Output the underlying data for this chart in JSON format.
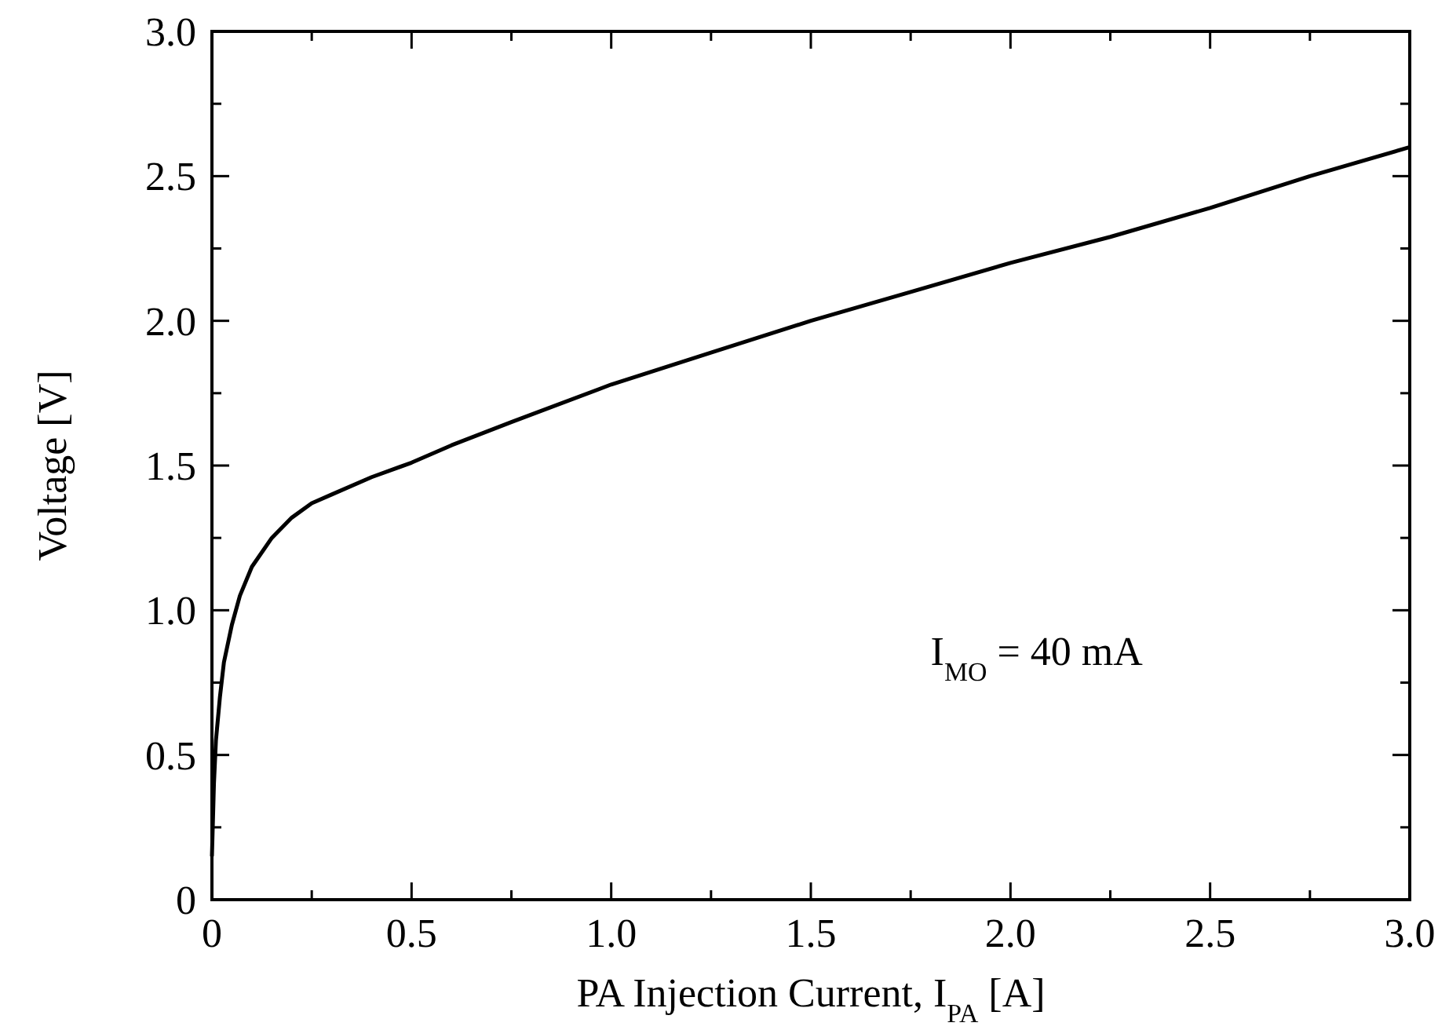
{
  "chart_data": {
    "type": "line",
    "xlabel": "PA Injection Current, I$_{PA}$ [A]",
    "ylabel": "Voltage [V]",
    "annotations": [
      "I$_{MO}$ = 40 mA"
    ],
    "x": [
      0,
      0.005,
      0.01,
      0.02,
      0.03,
      0.05,
      0.07,
      0.1,
      0.15,
      0.2,
      0.25,
      0.3,
      0.4,
      0.5,
      0.6,
      0.75,
      1.0,
      1.25,
      1.5,
      1.75,
      2.0,
      2.25,
      2.5,
      2.75,
      3.0
    ],
    "series": [
      {
        "color": "#000000",
        "values": [
          0.15,
          0.4,
          0.55,
          0.7,
          0.82,
          0.95,
          1.05,
          1.15,
          1.25,
          1.32,
          1.37,
          1.4,
          1.46,
          1.51,
          1.57,
          1.65,
          1.78,
          1.89,
          2.0,
          2.1,
          2.2,
          2.29,
          2.39,
          2.5,
          2.6
        ]
      }
    ],
    "xlim": [
      0,
      3
    ],
    "ylim": [
      0,
      3
    ],
    "xticks": [
      0,
      {
        "value": 0.25,
        "label": null
      },
      0.5,
      {
        "value": 0.75,
        "label": null
      },
      {
        "value": 1,
        "label": "1.0"
      },
      {
        "value": 1.25,
        "label": null
      },
      1.5,
      {
        "value": 1.75,
        "label": null
      },
      {
        "value": 2,
        "label": "2.0"
      },
      {
        "value": 2.25,
        "label": null
      },
      2.5,
      {
        "value": 2.75,
        "label": null
      },
      {
        "value": 3,
        "label": "3.0"
      }
    ],
    "yticks": [
      0,
      {
        "value": 0.25,
        "label": null
      },
      0.5,
      {
        "value": 0.75,
        "label": null
      },
      {
        "value": 1,
        "label": "1.0"
      },
      {
        "value": 1.25,
        "label": null
      },
      1.5,
      {
        "value": 1.75,
        "label": null
      },
      {
        "value": 2,
        "label": "2.0"
      },
      {
        "value": 2.25,
        "label": null
      },
      2.5,
      {
        "value": 2.75,
        "label": null
      },
      {
        "value": 3,
        "label": "3.0"
      }
    ],
    "grid": false,
    "marker": "none",
    "line_style": "solid"
  }
}
